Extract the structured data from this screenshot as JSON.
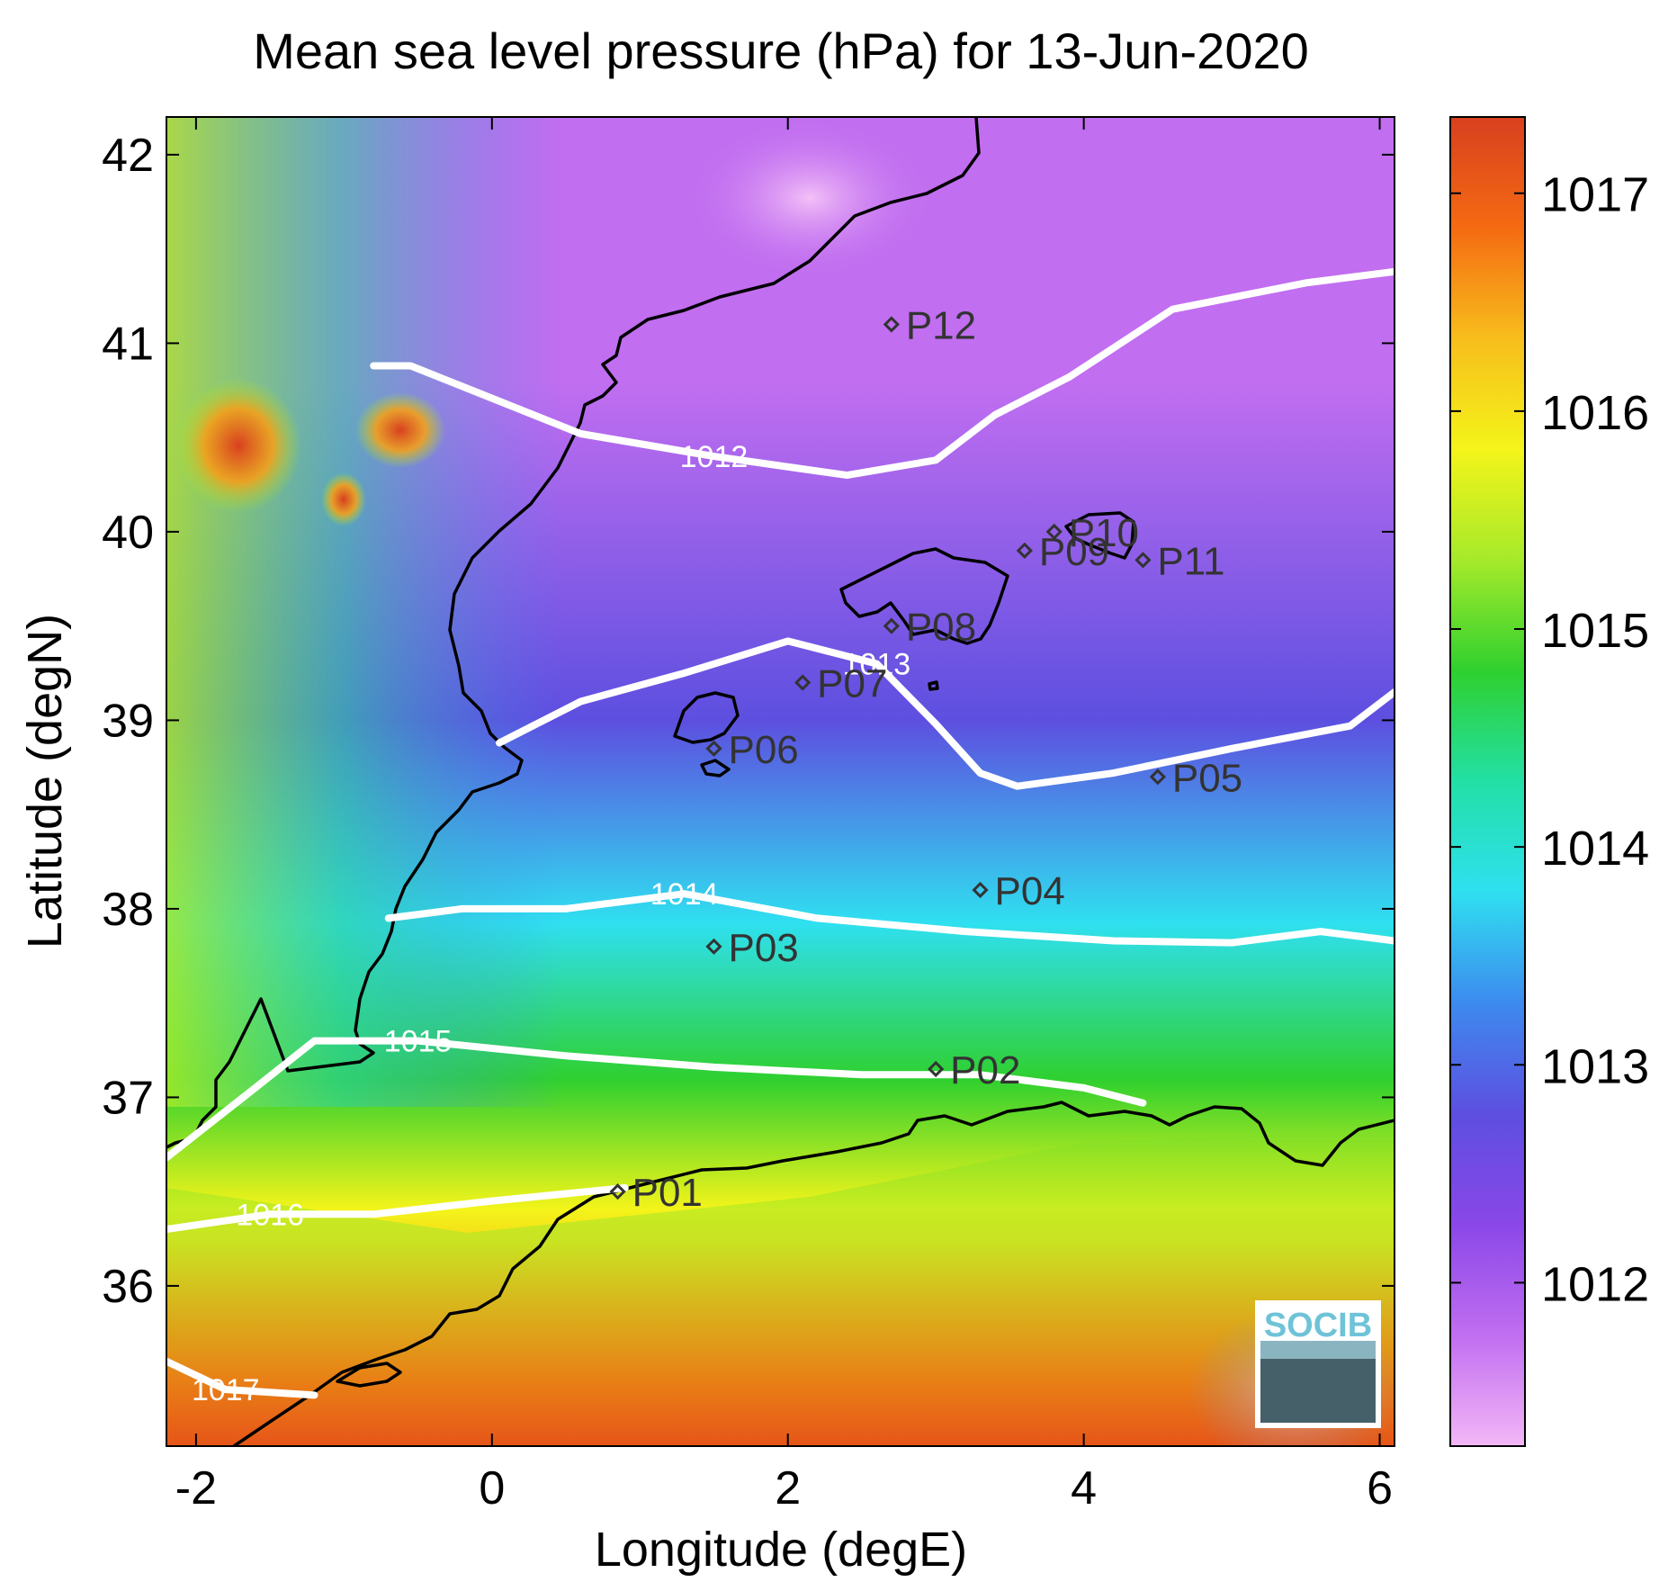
{
  "chart_data": {
    "type": "heatmap",
    "title": "Mean sea level pressure (hPa) for 13-Jun-2020",
    "xlabel": "Longitude (degE)",
    "ylabel": "Latitude (degN)",
    "xlim": [
      -2.2,
      6.1
    ],
    "ylim": [
      35.15,
      42.2
    ],
    "x_ticks": [
      -2,
      0,
      2,
      4,
      6
    ],
    "y_ticks": [
      36,
      37,
      38,
      39,
      40,
      41,
      42
    ],
    "colorbar": {
      "range": [
        1011.25,
        1017.35
      ],
      "ticks": [
        1012,
        1013,
        1014,
        1015,
        1016,
        1017
      ],
      "colormap": [
        "#f3b7f7",
        "#c16ef0",
        "#8a47e8",
        "#5d4fe0",
        "#3d8aef",
        "#2fe0f0",
        "#22e0a6",
        "#2fd02f",
        "#a6ea2a",
        "#f4f41a",
        "#f7be1c",
        "#f56a12",
        "#d8401f"
      ]
    },
    "contours": [
      {
        "level": 1012,
        "label": "1012",
        "points": [
          [
            -0.8,
            40.88
          ],
          [
            -0.55,
            40.88
          ],
          [
            0.6,
            40.52
          ],
          [
            1.5,
            40.4
          ],
          [
            2.4,
            40.3
          ],
          [
            3.0,
            40.38
          ],
          [
            3.4,
            40.62
          ],
          [
            3.9,
            40.82
          ],
          [
            4.6,
            41.18
          ],
          [
            5.5,
            41.32
          ],
          [
            6.1,
            41.38
          ]
        ]
      },
      {
        "level": 1013,
        "label": "1013",
        "points": [
          [
            0.05,
            38.88
          ],
          [
            0.6,
            39.1
          ],
          [
            1.3,
            39.25
          ],
          [
            2.0,
            39.42
          ],
          [
            2.6,
            39.3
          ],
          [
            3.0,
            38.98
          ],
          [
            3.3,
            38.72
          ],
          [
            3.55,
            38.65
          ],
          [
            4.2,
            38.72
          ],
          [
            5.0,
            38.85
          ],
          [
            5.8,
            38.97
          ],
          [
            6.1,
            39.15
          ]
        ]
      },
      {
        "level": 1014,
        "label": "1014",
        "points": [
          [
            -0.7,
            37.95
          ],
          [
            -0.2,
            38.0
          ],
          [
            0.5,
            38.0
          ],
          [
            1.3,
            38.08
          ],
          [
            2.2,
            37.95
          ],
          [
            3.2,
            37.88
          ],
          [
            4.2,
            37.83
          ],
          [
            5.0,
            37.82
          ],
          [
            5.6,
            37.88
          ],
          [
            6.1,
            37.83
          ]
        ]
      },
      {
        "level": 1015,
        "label": "1015",
        "points": [
          [
            -2.2,
            36.68
          ],
          [
            -1.6,
            37.05
          ],
          [
            -1.2,
            37.3
          ],
          [
            -0.5,
            37.3
          ],
          [
            0.5,
            37.22
          ],
          [
            1.5,
            37.16
          ],
          [
            2.5,
            37.12
          ],
          [
            3.3,
            37.12
          ],
          [
            4.0,
            37.05
          ],
          [
            4.4,
            36.97
          ]
        ]
      },
      {
        "level": 1016,
        "label": "1016",
        "points": [
          [
            -2.2,
            36.3
          ],
          [
            -1.5,
            36.38
          ],
          [
            -0.8,
            36.38
          ],
          [
            0.0,
            36.45
          ],
          [
            0.9,
            36.52
          ]
        ]
      },
      {
        "level": 1017,
        "label": "1017",
        "points": [
          [
            -2.2,
            35.6
          ],
          [
            -1.8,
            35.45
          ],
          [
            -1.2,
            35.42
          ]
        ]
      }
    ],
    "stations": [
      {
        "name": "P01",
        "lon": 0.85,
        "lat": 36.5
      },
      {
        "name": "P02",
        "lon": 3.0,
        "lat": 37.15
      },
      {
        "name": "P03",
        "lon": 1.5,
        "lat": 37.8
      },
      {
        "name": "P04",
        "lon": 3.3,
        "lat": 38.1
      },
      {
        "name": "P05",
        "lon": 4.5,
        "lat": 38.7
      },
      {
        "name": "P06",
        "lon": 1.5,
        "lat": 38.85
      },
      {
        "name": "P07",
        "lon": 2.1,
        "lat": 39.2
      },
      {
        "name": "P08",
        "lon": 2.7,
        "lat": 39.5
      },
      {
        "name": "P09",
        "lon": 3.6,
        "lat": 39.9
      },
      {
        "name": "P10",
        "lon": 3.8,
        "lat": 40.0
      },
      {
        "name": "P11",
        "lon": 4.4,
        "lat": 39.85
      },
      {
        "name": "P12",
        "lon": 2.7,
        "lat": 41.1
      }
    ],
    "logo": "SOCIB"
  }
}
